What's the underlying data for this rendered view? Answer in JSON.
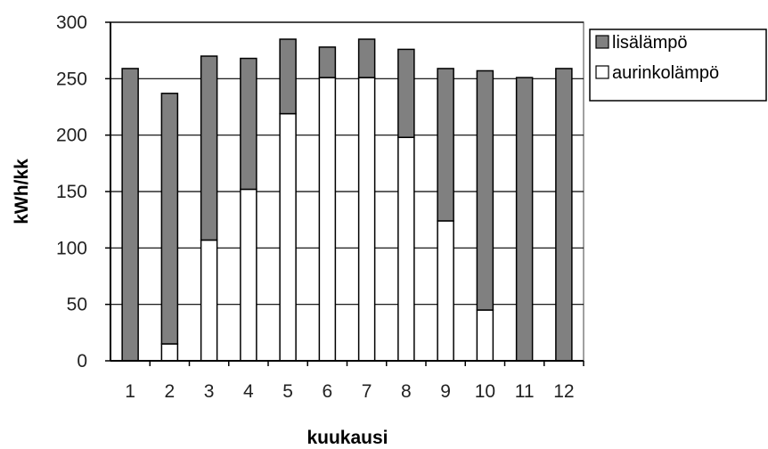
{
  "chart_data": {
    "type": "bar",
    "stacked": true,
    "title": "",
    "xlabel": "kuukausi",
    "ylabel": "kWh/kk",
    "ylim": [
      0,
      300
    ],
    "yticks": [
      0,
      50,
      100,
      150,
      200,
      250,
      300
    ],
    "grid": true,
    "legend_position": "right-top",
    "categories": [
      "1",
      "2",
      "3",
      "4",
      "5",
      "6",
      "7",
      "8",
      "9",
      "10",
      "11",
      "12"
    ],
    "series": [
      {
        "name": "aurinkolämpö",
        "color": "#ffffff",
        "values": [
          0,
          15,
          107,
          152,
          219,
          251,
          251,
          198,
          124,
          45,
          0,
          0
        ]
      },
      {
        "name": "lisälämpö",
        "color": "#808080",
        "values": [
          259,
          222,
          163,
          116,
          66,
          27,
          34,
          78,
          135,
          212,
          251,
          259
        ]
      }
    ],
    "legend_order": [
      "lisälämpö",
      "aurinkolämpö"
    ]
  }
}
